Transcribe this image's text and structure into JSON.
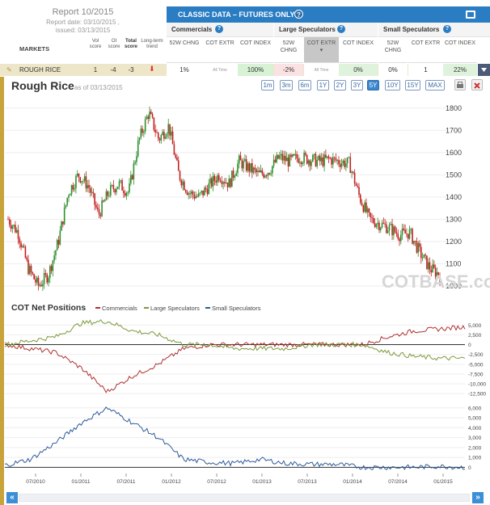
{
  "report": {
    "title": "Report 10/2015",
    "report_date": "Report date: 03/10/2015 ,",
    "issued": "issued: 03/13/2015"
  },
  "panel": {
    "title": "CLASSIC DATA – FUTURES ONLY",
    "groups": [
      "Commercials",
      "Large Speculators",
      "Small Speculators"
    ],
    "col_headers": [
      "52W CHNG",
      "COT EXTR",
      "COT INDEX",
      "52W CHNG",
      "COT EXTR",
      "COT INDEX",
      "52W CHNG",
      "COT EXTR",
      "COT INDEX"
    ],
    "markets_label": "MARKETS",
    "score_headers": [
      "Vol score",
      "OI score",
      "Total score",
      "Long-term trend"
    ]
  },
  "market_row": {
    "name": "ROUGH RICE",
    "vol_score": "1",
    "oi_score": "-4",
    "total_score": "-3",
    "cells": [
      "1%",
      "All Time",
      "100%",
      "-2%",
      "All Time",
      "0%",
      "0%",
      "1",
      "22%"
    ]
  },
  "chart_header": {
    "title": "Rough Rice",
    "as_of": "as of 03/13/2015",
    "ranges": [
      "1m",
      "3m",
      "6m",
      "1Y",
      "2Y",
      "3Y",
      "5Y",
      "10Y",
      "15Y",
      "MAX"
    ],
    "active_range": "5Y"
  },
  "chart_data": [
    {
      "type": "candlestick",
      "watermark": "COTBASE.com",
      "y_ticks": [
        "1800",
        "1700",
        "1600",
        "1500",
        "1400",
        "1300",
        "1200",
        "1100",
        "1000"
      ],
      "ylim": [
        960,
        1850
      ],
      "x": [
        "2010-03",
        "2010-05",
        "2010-07",
        "2010-08",
        "2010-09",
        "2010-10",
        "2010-11",
        "2010-12",
        "2011-01",
        "2011-02",
        "2011-03",
        "2011-04",
        "2011-05",
        "2011-06",
        "2011-07",
        "2011-08",
        "2011-09",
        "2011-10",
        "2011-11",
        "2011-12",
        "2012-02",
        "2012-04",
        "2012-06",
        "2012-08",
        "2012-10",
        "2012-12",
        "2013-02",
        "2013-04",
        "2013-06",
        "2013-08",
        "2013-10",
        "2013-12",
        "2014-02",
        "2014-04",
        "2014-06",
        "2014-07",
        "2014-08",
        "2014-09",
        "2014-10",
        "2014-11",
        "2014-12",
        "2015-01",
        "2015-02",
        "2015-03"
      ],
      "close": [
        1300,
        1240,
        1080,
        1000,
        1050,
        1200,
        1420,
        1500,
        1450,
        1320,
        1420,
        1460,
        1420,
        1650,
        1780,
        1660,
        1720,
        1500,
        1420,
        1400,
        1450,
        1500,
        1460,
        1560,
        1530,
        1500,
        1520,
        1580,
        1560,
        1580,
        1570,
        1560,
        1570,
        1560,
        1550,
        1400,
        1300,
        1280,
        1260,
        1230,
        1240,
        1150,
        1080,
        1050
      ]
    },
    {
      "type": "line",
      "title": "COT Net Positions",
      "series_names": [
        "Commercials",
        "Large Speculators",
        "Small Speculators"
      ],
      "colors": [
        "#b03030",
        "#7a9a3a",
        "#2d5a9a"
      ],
      "upper_ticks": [
        "5,000",
        "2,500",
        "0",
        "-2,500",
        "-5,000",
        "-7,500",
        "-10,000",
        "-12,500"
      ],
      "lower_ticks": [
        "6,000",
        "5,000",
        "4,000",
        "3,000",
        "2,000",
        "1,000",
        "0"
      ],
      "x_labels": [
        "07/2010",
        "01/2011",
        "07/2011",
        "01/2012",
        "07/2012",
        "01/2013",
        "07/2013",
        "01/2014",
        "07/2014",
        "01/2015"
      ],
      "commercials": [
        0,
        -1000,
        -2000,
        -6000,
        -12000,
        -8000,
        -5000,
        -1000,
        0,
        0,
        0,
        0,
        0,
        0,
        0,
        2000,
        3500,
        4000,
        4500
      ],
      "large_speculators": [
        0,
        1000,
        2000,
        5500,
        6000,
        3500,
        2500,
        0,
        0,
        -1000,
        -1000,
        -1000,
        0,
        0,
        0,
        -2000,
        -3000,
        -3500,
        -3500
      ],
      "small_speculators": [
        200,
        800,
        2500,
        4500,
        6000,
        4500,
        3000,
        800,
        500,
        400,
        800,
        400,
        300,
        300,
        0,
        0,
        0,
        100,
        0
      ]
    }
  ]
}
